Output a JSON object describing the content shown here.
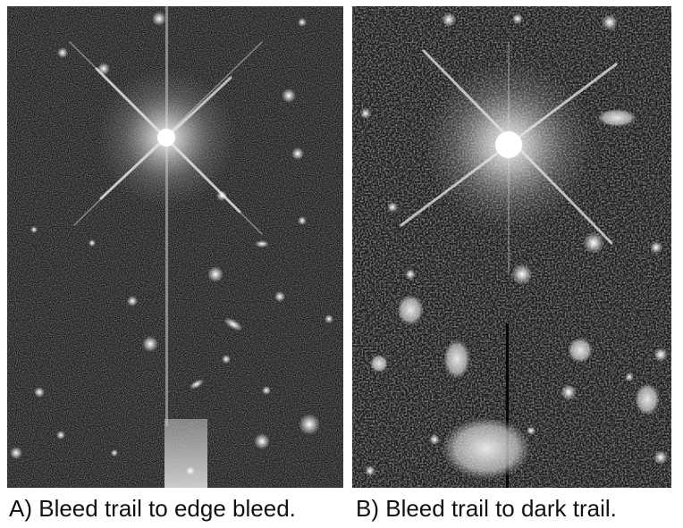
{
  "figure": {
    "panels": [
      {
        "id": "A",
        "caption": "A) Bleed trail to edge bleed."
      },
      {
        "id": "B",
        "caption": "B) Bleed trail to dark trail."
      }
    ]
  },
  "colors": {
    "background": "#ffffff",
    "sky": "#1a1a1a",
    "star": "#ffffff",
    "caption_text": "#111111"
  }
}
